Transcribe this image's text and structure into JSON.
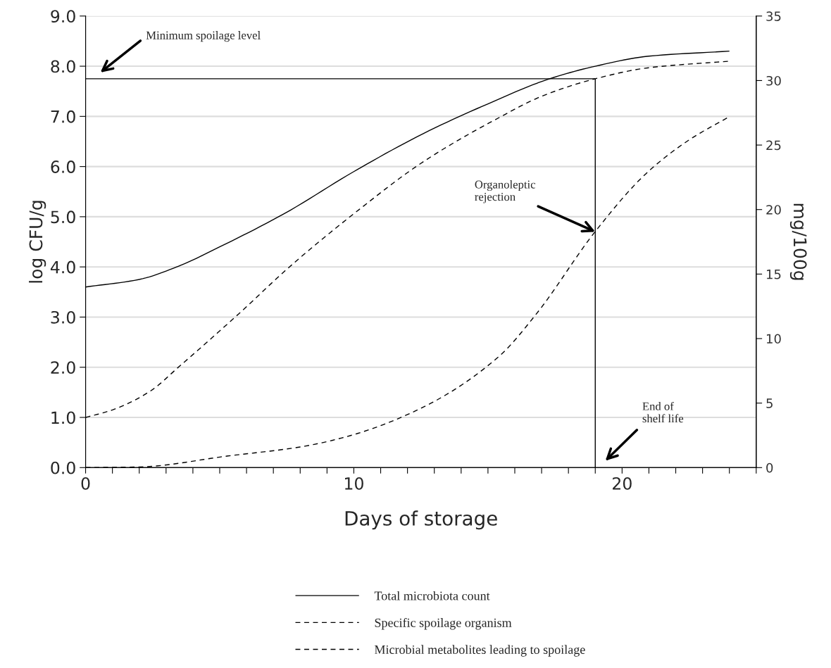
{
  "chart_data": {
    "type": "line",
    "xlabel": "Days of storage",
    "ylabel": "log CFU/g",
    "y2label": "mg/100g",
    "series": [
      {
        "name": "Total microbiota count",
        "color": "#000000",
        "line_style": "solid",
        "x": [
          0,
          2,
          3.4,
          5,
          7.4,
          10,
          12.6,
          15,
          17.3,
          19,
          21,
          24
        ],
        "values": [
          3.6,
          3.75,
          4.0,
          4.4,
          5.06,
          5.9,
          6.66,
          7.25,
          7.75,
          8.0,
          8.2,
          8.3
        ]
      },
      {
        "name": "Specific spoilage organism",
        "color": "#000000",
        "line_style": "dashed",
        "x": [
          0,
          1,
          2.4,
          3.5,
          5.7,
          7.6,
          10,
          12.6,
          15.5,
          17,
          19,
          21,
          24
        ],
        "values": [
          1.0,
          1.15,
          1.52,
          2.02,
          3.06,
          4.0,
          5.06,
          6.1,
          7.0,
          7.4,
          7.75,
          7.97,
          8.1
        ]
      },
      {
        "name": "Microbial metabolites leading to spoilage",
        "color": "#000000",
        "line_style": "dashed",
        "axis": "y2",
        "x": [
          0,
          2,
          5.3,
          8,
          9.9,
          12.6,
          15.4,
          16.8,
          19,
          20.9,
          22.5,
          24
        ],
        "values": [
          0,
          0.05,
          0.9,
          1.6,
          2.5,
          4.7,
          8.6,
          11.9,
          18.3,
          22.8,
          25.4,
          27.2
        ]
      },
      {
        "color": "#000000",
        "line_style": "solid",
        "x": [
          0,
          19
        ],
        "values": [
          7.75,
          7.75
        ]
      },
      {
        "color": "#000000",
        "line_style": "solid",
        "x": [
          19,
          19
        ],
        "values": [
          0,
          7.75
        ]
      }
    ],
    "xlim": [
      0,
      25
    ],
    "xticks": [
      0,
      {
        "value": 1,
        "label": null
      },
      {
        "value": 2,
        "label": null
      },
      {
        "value": 3,
        "label": null
      },
      {
        "value": 4,
        "label": null
      },
      {
        "value": 5,
        "label": null
      },
      {
        "value": 6,
        "label": null
      },
      {
        "value": 7,
        "label": null
      },
      {
        "value": 8,
        "label": null
      },
      {
        "value": 9,
        "label": null
      },
      10,
      {
        "value": 11,
        "label": null
      },
      {
        "value": 12,
        "label": null
      },
      {
        "value": 13,
        "label": null
      },
      {
        "value": 14,
        "label": null
      },
      {
        "value": 15,
        "label": null
      },
      {
        "value": 16,
        "label": null
      },
      {
        "value": 17,
        "label": null
      },
      {
        "value": 18,
        "label": null
      },
      {
        "value": 19,
        "label": null
      },
      20,
      {
        "value": 21,
        "label": null
      },
      {
        "value": 22,
        "label": null
      },
      {
        "value": 23,
        "label": null
      },
      {
        "value": 24,
        "label": null
      },
      {
        "value": 25,
        "label": null
      }
    ],
    "ylim": [
      0,
      9
    ],
    "yticks": [
      {
        "value": 0,
        "label": "0.0"
      },
      {
        "value": 1,
        "label": "1.0"
      },
      {
        "value": 2,
        "label": "2.0"
      },
      {
        "value": 3,
        "label": "3.0"
      },
      {
        "value": 4,
        "label": "4.0"
      },
      {
        "value": 5,
        "label": "5.0"
      },
      {
        "value": 6,
        "label": "6.0"
      },
      {
        "value": 7,
        "label": "7.0"
      },
      {
        "value": 8,
        "label": "8.0"
      },
      {
        "value": 9,
        "label": "9.0"
      }
    ],
    "y2lim": [
      0,
      35
    ],
    "y2ticks": [
      0,
      5,
      10,
      15,
      20,
      25,
      30,
      35
    ],
    "annotations": [
      "Minimum spoilage level",
      {
        "text": "Organoleptic rejection",
        "x": 19,
        "y": 4.7
      },
      "End of shelf life"
    ],
    "grid": "y",
    "legend": "bottom"
  }
}
